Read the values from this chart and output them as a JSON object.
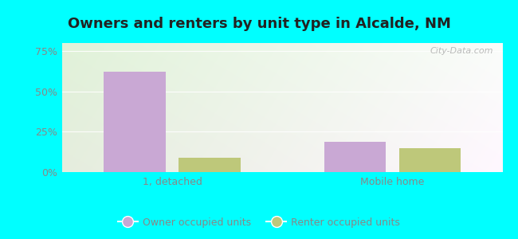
{
  "title": "Owners and renters by unit type in Alcalde, NM",
  "categories": [
    "1, detached",
    "Mobile home"
  ],
  "owner_values": [
    62,
    19
  ],
  "renter_values": [
    9,
    15
  ],
  "owner_color": "#c9a8d4",
  "renter_color": "#bec87a",
  "yticks": [
    0,
    25,
    50,
    75
  ],
  "ylim": [
    0,
    80
  ],
  "bar_width": 0.28,
  "legend_labels": [
    "Owner occupied units",
    "Renter occupied units"
  ],
  "bg_outer": "#00ffff",
  "title_fontsize": 13,
  "watermark": "City-Data.com",
  "tick_color": "#888888",
  "grid_color": "#dddddd"
}
